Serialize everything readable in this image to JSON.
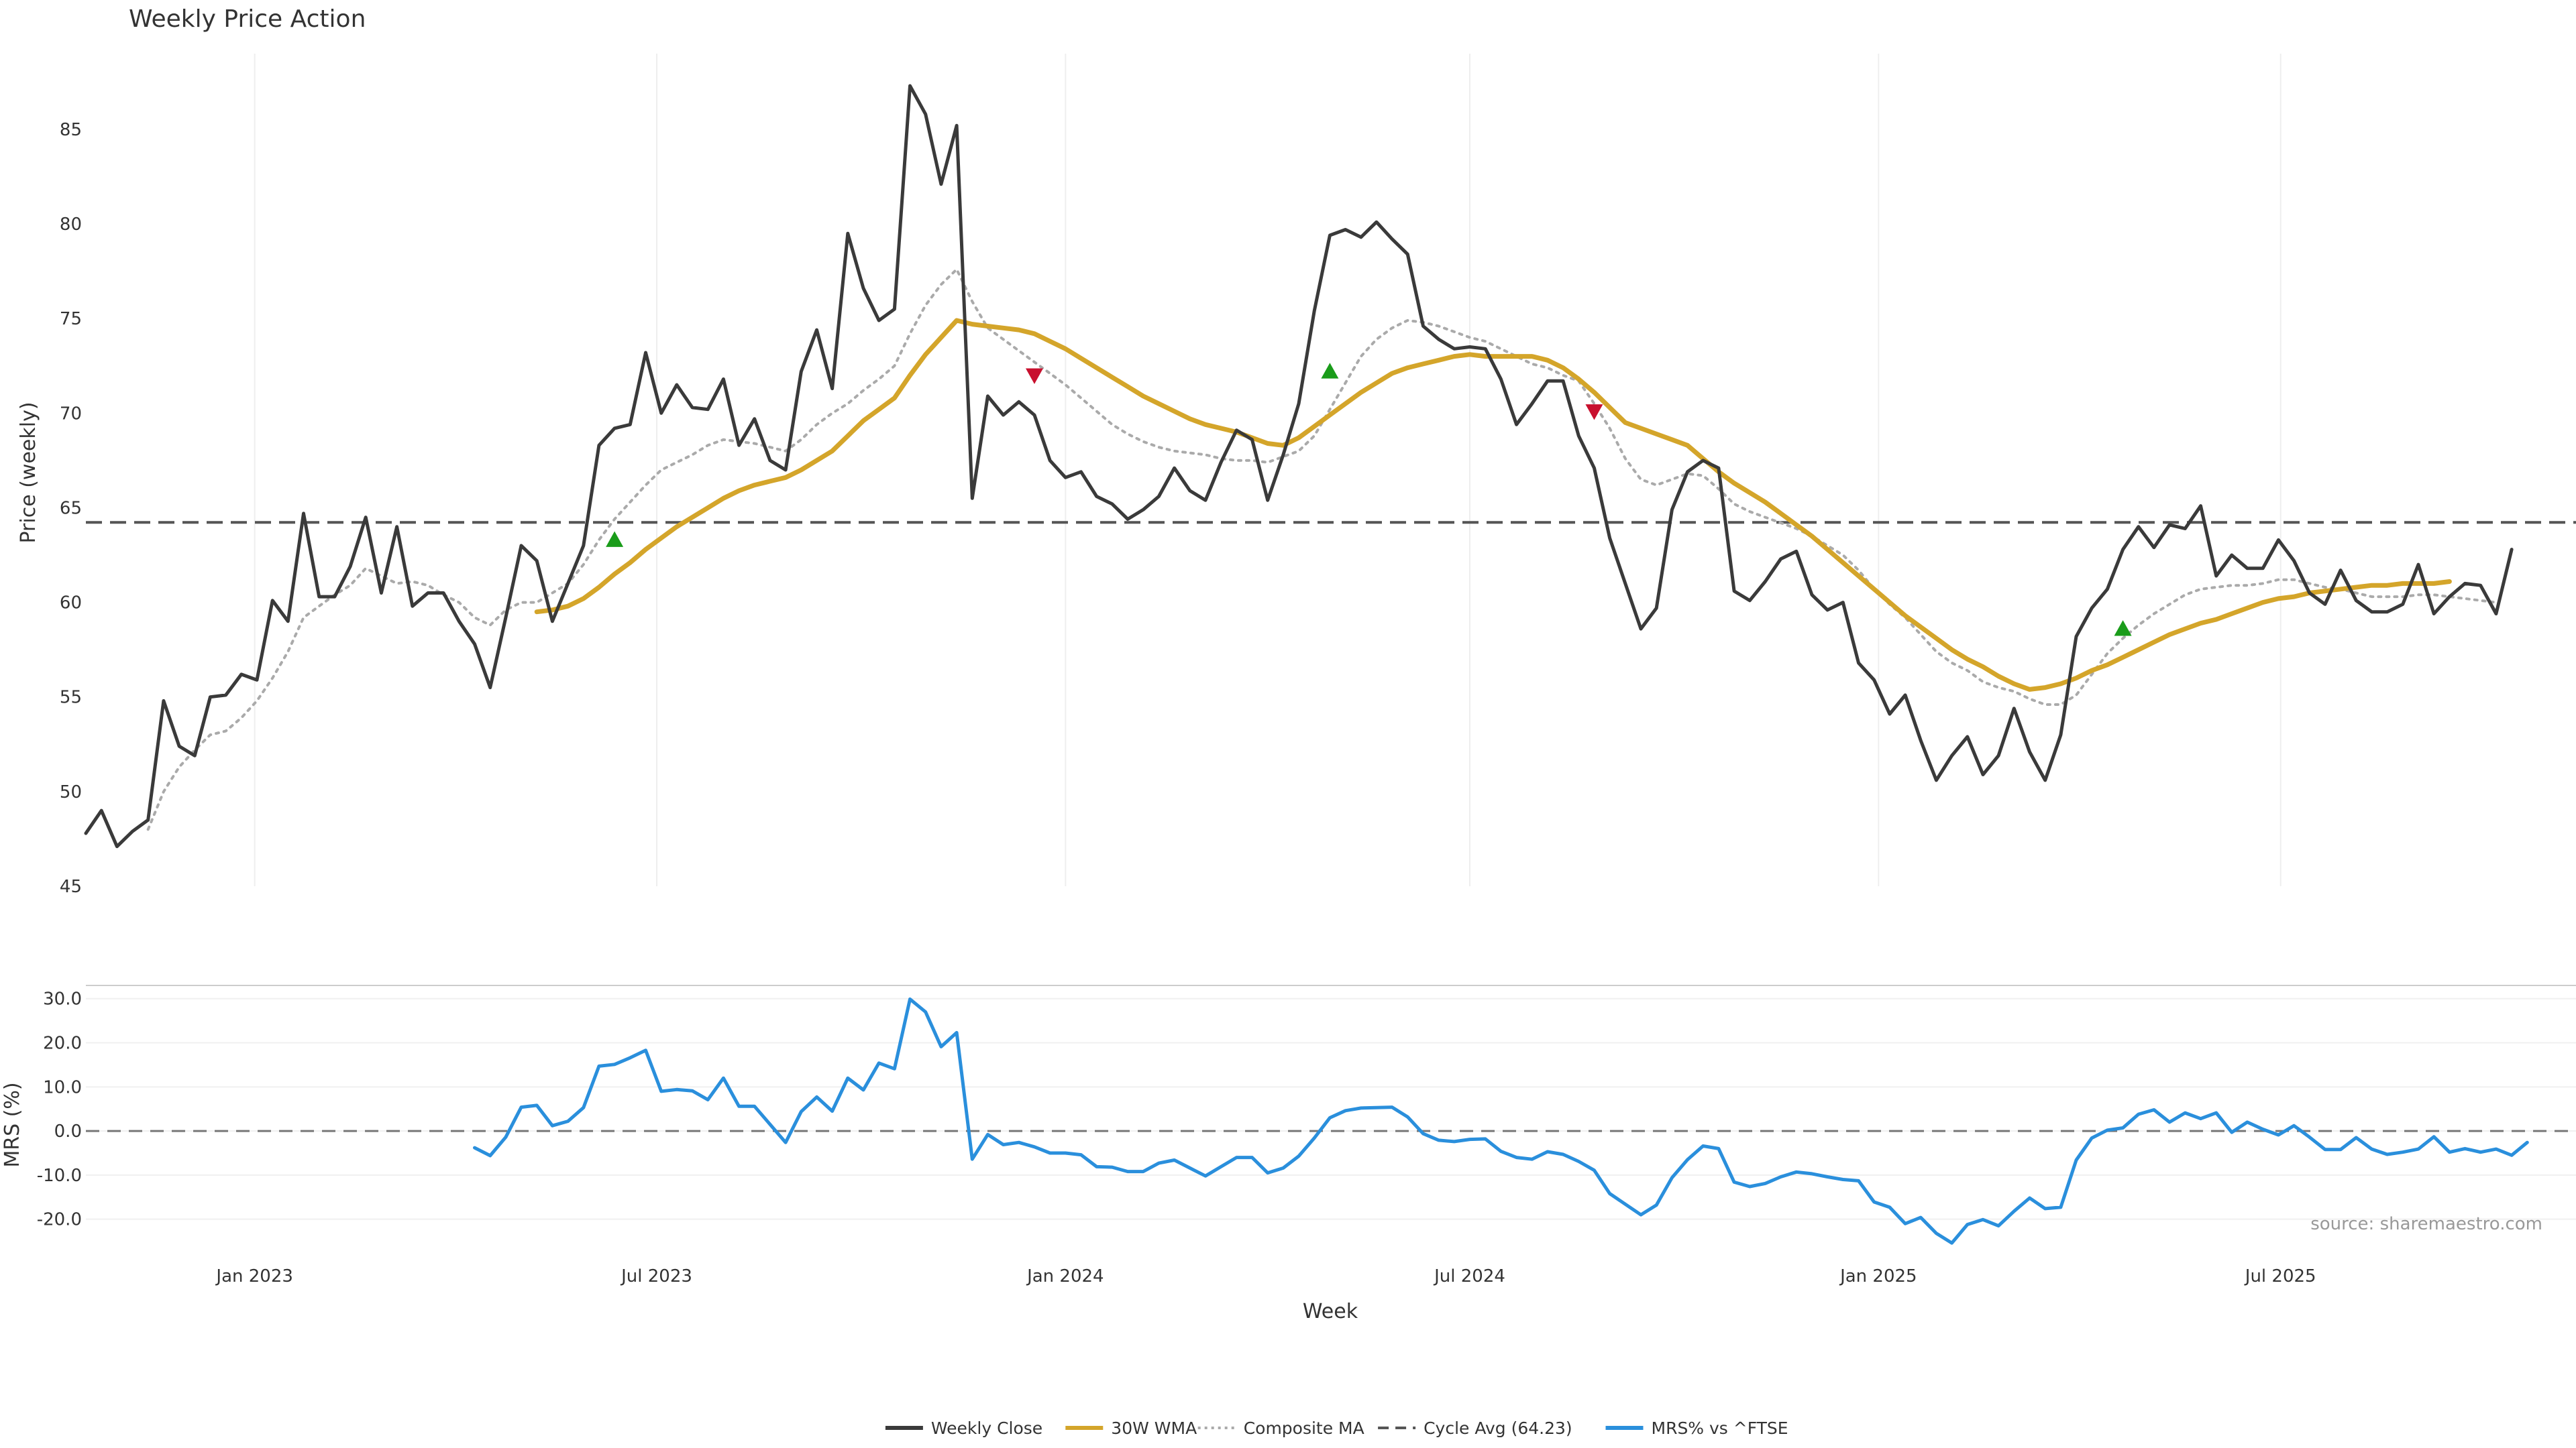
{
  "chart_data": {
    "type": "line",
    "title": "Weekly Price Action",
    "source": "source: sharemaestro.com",
    "xlabel": "Week",
    "x_ticks": [
      "Jan 2023",
      "Jul 2023",
      "Jan 2024",
      "Jul 2024",
      "Jan 2025",
      "Jul 2025"
    ],
    "x_start": "2022-10-17",
    "grid": true,
    "legend_position": "bottom-center",
    "price_panel": {
      "ylabel": "Price (weekly)",
      "ylim": [
        45,
        89
      ],
      "y_ticks": [
        45,
        50,
        55,
        60,
        65,
        70,
        75,
        80,
        85
      ],
      "cycle_avg": 64.23,
      "series": [
        {
          "name": "Weekly Close",
          "color": "#3a3a3a",
          "values": [
            47.8,
            49.0,
            47.1,
            47.9,
            48.5,
            54.8,
            52.4,
            51.9,
            55.0,
            55.1,
            56.2,
            55.9,
            60.1,
            59.0,
            64.7,
            60.3,
            60.3,
            61.9,
            64.5,
            60.5,
            64.0,
            59.8,
            60.5,
            60.5,
            59.0,
            57.8,
            55.5,
            59.2,
            63.0,
            62.2,
            59.0,
            61.0,
            63.0,
            68.3,
            69.2,
            69.4,
            73.2,
            70.0,
            71.5,
            70.3,
            70.2,
            71.8,
            68.3,
            69.7,
            67.5,
            67.0,
            72.2,
            74.4,
            71.3,
            79.5,
            76.6,
            74.9,
            75.5,
            87.3,
            85.8,
            82.1,
            85.2,
            65.5,
            70.9,
            69.9,
            70.6,
            69.9,
            67.5,
            66.6,
            66.9,
            65.6,
            65.2,
            64.4,
            64.9,
            65.6,
            67.1,
            65.9,
            65.4,
            67.4,
            69.1,
            68.6,
            65.4,
            67.8,
            70.5,
            75.4,
            79.4,
            79.7,
            79.3,
            80.1,
            79.2,
            78.4,
            74.6,
            73.9,
            73.4,
            73.5,
            73.4,
            71.8,
            69.4,
            70.5,
            71.7,
            71.7,
            68.8,
            67.1,
            63.4,
            61.0,
            58.6,
            59.7,
            64.9,
            66.9,
            67.5,
            67.1,
            60.6,
            60.1,
            61.1,
            62.3,
            62.7,
            60.4,
            59.6,
            60.0,
            56.8,
            55.9,
            54.1,
            55.1,
            52.7,
            50.6,
            51.9,
            52.9,
            50.9,
            51.9,
            54.4,
            52.1,
            50.6,
            53.0,
            58.2,
            59.7,
            60.7,
            62.8,
            64.0,
            62.9,
            64.1,
            63.9,
            65.1,
            61.4,
            62.5,
            61.8,
            61.8,
            63.3,
            62.2,
            60.5,
            59.9,
            61.7,
            60.1,
            59.5,
            59.5,
            59.9,
            62.0,
            59.4,
            60.3,
            61.0,
            60.9,
            59.4,
            62.8
          ]
        },
        {
          "name": "30W WMA",
          "color": "#d4a52a",
          "start_index": 29,
          "values": [
            59.5,
            59.6,
            59.8,
            60.2,
            60.8,
            61.5,
            62.1,
            62.8,
            63.4,
            64.0,
            64.5,
            65.0,
            65.5,
            65.9,
            66.2,
            66.4,
            66.6,
            67.0,
            67.5,
            68.0,
            68.8,
            69.6,
            70.2,
            70.8,
            72.0,
            73.1,
            74.0,
            74.9,
            74.7,
            74.6,
            74.5,
            74.4,
            74.2,
            73.8,
            73.4,
            72.9,
            72.4,
            71.9,
            71.4,
            70.9,
            70.5,
            70.1,
            69.7,
            69.4,
            69.2,
            69.0,
            68.7,
            68.4,
            68.3,
            68.7,
            69.3,
            69.9,
            70.5,
            71.1,
            71.6,
            72.1,
            72.4,
            72.6,
            72.8,
            73.0,
            73.1,
            73.0,
            73.0,
            73.0,
            73.0,
            72.8,
            72.4,
            71.8,
            71.1,
            70.3,
            69.5,
            69.2,
            68.9,
            68.6,
            68.3,
            67.6,
            66.9,
            66.3,
            65.8,
            65.3,
            64.7,
            64.1,
            63.5,
            62.8,
            62.1,
            61.4,
            60.7,
            60.0,
            59.3,
            58.7,
            58.1,
            57.5,
            57.0,
            56.6,
            56.1,
            55.7,
            55.4,
            55.5,
            55.7,
            56.0,
            56.4,
            56.7,
            57.1,
            57.5,
            57.9,
            58.3,
            58.6,
            58.9,
            59.1,
            59.4,
            59.7,
            60.0,
            60.2,
            60.3,
            60.5,
            60.6,
            60.7,
            60.8,
            60.9,
            60.9,
            61.0,
            61.0,
            61.0,
            61.1
          ]
        },
        {
          "name": "Composite MA",
          "color": "#aaaaaa",
          "start_index": 4,
          "values": [
            48.0,
            50.0,
            51.3,
            52.2,
            53.0,
            53.2,
            53.9,
            54.8,
            56.0,
            57.4,
            59.2,
            59.8,
            60.4,
            60.9,
            61.8,
            61.4,
            61.0,
            61.1,
            60.9,
            60.4,
            60.0,
            59.2,
            58.8,
            59.6,
            60.0,
            60.0,
            60.5,
            61.0,
            62.0,
            63.3,
            64.4,
            65.3,
            66.2,
            67.0,
            67.4,
            67.8,
            68.3,
            68.6,
            68.5,
            68.4,
            68.2,
            68.0,
            68.6,
            69.4,
            70.0,
            70.5,
            71.2,
            71.8,
            72.5,
            74.2,
            75.7,
            76.8,
            77.6,
            75.9,
            74.5,
            73.9,
            73.3,
            72.7,
            72.1,
            71.5,
            70.8,
            70.1,
            69.4,
            68.9,
            68.5,
            68.2,
            68.0,
            67.9,
            67.8,
            67.6,
            67.5,
            67.5,
            67.4,
            67.7,
            68.0,
            68.8,
            70.2,
            71.6,
            73.0,
            73.9,
            74.5,
            74.9,
            74.8,
            74.6,
            74.3,
            74.0,
            73.8,
            73.4,
            73.0,
            72.6,
            72.4,
            72.0,
            71.7,
            70.5,
            69.2,
            67.6,
            66.5,
            66.2,
            66.5,
            66.8,
            66.7,
            66.0,
            65.2,
            64.8,
            64.5,
            64.2,
            63.9,
            63.5,
            63.0,
            62.5,
            61.7,
            60.7,
            59.9,
            59.2,
            58.3,
            57.4,
            56.8,
            56.4,
            55.8,
            55.5,
            55.3,
            54.9,
            54.6,
            54.6,
            55.1,
            56.2,
            57.3,
            58.1,
            58.8,
            59.4,
            59.9,
            60.4,
            60.7,
            60.8,
            60.9,
            60.9,
            61.0,
            61.2,
            61.2,
            61.0,
            60.8,
            60.7,
            60.5,
            60.3,
            60.3,
            60.3,
            60.4,
            60.4,
            60.3,
            60.2,
            60.1,
            60.0
          ]
        }
      ],
      "markers": [
        {
          "index": 34,
          "value": 63.3,
          "type": "buy",
          "color": "#1a9c1a"
        },
        {
          "index": 61,
          "value": 72.0,
          "type": "sell",
          "color": "#c8102e"
        },
        {
          "index": 80,
          "value": 72.2,
          "type": "buy",
          "color": "#1a9c1a"
        },
        {
          "index": 97,
          "value": 70.1,
          "type": "sell",
          "color": "#c8102e"
        },
        {
          "index": 131,
          "value": 58.6,
          "type": "buy",
          "color": "#1a9c1a"
        }
      ]
    },
    "mrs_panel": {
      "ylabel": "MRS (%)",
      "ylim": [
        -24,
        33
      ],
      "y_ticks": [
        "30.0",
        "20.0",
        "10.0",
        "0.0",
        "-10.0",
        "-20.0"
      ],
      "zero_line": 0,
      "series": [
        {
          "name": "MRS% vs ^FTSE",
          "color": "#2a8fdc",
          "start_index": 25,
          "values": [
            -3.8,
            -5.6,
            -1.4,
            5.4,
            5.8,
            1.2,
            2.2,
            5.3,
            14.7,
            15.1,
            16.6,
            18.3,
            9.0,
            9.4,
            9.1,
            7.1,
            12.0,
            5.6,
            5.6,
            1.5,
            -2.6,
            4.4,
            7.7,
            4.5,
            12.0,
            9.3,
            15.4,
            14.1,
            29.9,
            27.0,
            19.1,
            22.3,
            -6.4,
            -0.8,
            -3.1,
            -2.6,
            -3.6,
            -5.0,
            -5.0,
            -5.4,
            -8.1,
            -8.2,
            -9.2,
            -9.2,
            -7.3,
            -6.6,
            -8.4,
            -10.2,
            -8.1,
            -6.0,
            -6.0,
            -9.5,
            -8.4,
            -5.7,
            -1.6,
            3.0,
            4.6,
            5.2,
            5.3,
            5.4,
            3.2,
            -0.6,
            -2.1,
            -2.4,
            -1.9,
            -1.8,
            -4.6,
            -6.0,
            -6.4,
            -4.7,
            -5.3,
            -6.9,
            -8.9,
            -14.2,
            -16.6,
            -19.0,
            -16.8,
            -10.6,
            -6.5,
            -3.4,
            -4.0,
            -11.6,
            -12.6,
            -11.9,
            -10.4,
            -9.3,
            -9.7,
            -10.4,
            -11.0,
            -11.3,
            -16.1,
            -17.3,
            -21.0,
            -19.6,
            -23.2,
            -25.4,
            -21.2,
            -20.1,
            -21.5,
            -18.2,
            -15.2,
            -17.6,
            -17.3,
            -6.6,
            -1.6,
            0.2,
            0.7,
            3.8,
            4.8,
            2.0,
            4.1,
            2.8,
            4.1,
            -0.3,
            2.0,
            0.4,
            -0.9,
            1.2,
            -1.4,
            -4.2,
            -4.2,
            -1.5,
            -4.1,
            -5.3,
            -4.8,
            -4.1,
            -1.3,
            -4.8,
            -4.0,
            -4.8,
            -4.1,
            -5.5,
            -2.6
          ]
        }
      ]
    },
    "legend": [
      {
        "label": "Weekly Close",
        "color": "#3a3a3a",
        "style": "solid"
      },
      {
        "label": "30W WMA",
        "color": "#d4a52a",
        "style": "solid"
      },
      {
        "label": "Composite MA",
        "color": "#aaaaaa",
        "style": "dotted"
      },
      {
        "label": "Cycle Avg (64.23)",
        "color": "#555555",
        "style": "dashed"
      },
      {
        "label": "MRS% vs ^FTSE",
        "color": "#2a8fdc",
        "style": "solid"
      }
    ]
  }
}
